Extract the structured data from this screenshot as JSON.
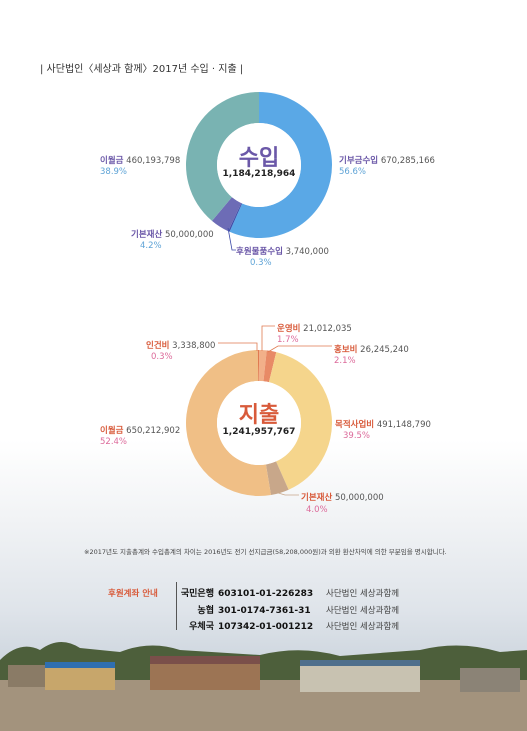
{
  "title": "| 사단법인〈세상과 함께〉2017년 수입 · 지출 |",
  "income": {
    "center_title": "수입",
    "total": "1,184,218,964",
    "items": [
      {
        "label": "기부금수입",
        "amount": "670,285,166",
        "percent": "56.6%",
        "color": "#5aa8e6",
        "value": 670285166
      },
      {
        "label": "후원물품수입",
        "amount": "3,740,000",
        "percent": "0.3%",
        "color": "#3c4aa8",
        "value": 3740000
      },
      {
        "label": "기본재산",
        "amount": "50,000,000",
        "percent": "4.2%",
        "color": "#6d6cb6",
        "value": 50000000
      },
      {
        "label": "이월금",
        "amount": "460,193,798",
        "percent": "38.9%",
        "color": "#79b3b2",
        "value": 460193798
      }
    ]
  },
  "expense": {
    "center_title": "지출",
    "total": "1,241,957,767",
    "items": [
      {
        "label": "운영비",
        "amount": "21,012,035",
        "percent": "1.7%",
        "color": "#f2b089",
        "value": 21012035
      },
      {
        "label": "홍보비",
        "amount": "26,245,240",
        "percent": "2.1%",
        "color": "#e88a66",
        "value": 26245240
      },
      {
        "label": "목적사업비",
        "amount": "491,148,790",
        "percent": "39.5%",
        "color": "#f5d58c",
        "value": 491148790
      },
      {
        "label": "기본재산",
        "amount": "50,000,000",
        "percent": "4.0%",
        "color": "#c8a78a",
        "value": 50000000
      },
      {
        "label": "이월금",
        "amount": "650,212,902",
        "percent": "52.4%",
        "color": "#f0bf86",
        "value": 650212902
      },
      {
        "label": "인건비",
        "amount": "3,338,800",
        "percent": "0.3%",
        "color": "#e07a50",
        "value": 3338800
      }
    ]
  },
  "note": "※2017년도 지출총계와 수입총계의 차이는 2016년도 전기 선지급금(58,208,000원)과 외환 환산차익에 의한 부분임을 명시합니다.",
  "accounts": {
    "label": "후원계좌 안내",
    "rows": [
      {
        "bank": "국민은행",
        "number": "603101-01-226283",
        "owner": "사단법인 세상과함께"
      },
      {
        "bank": "농협",
        "number": "301-0174-7361-31",
        "owner": "사단법인 세상과함께"
      },
      {
        "bank": "우체국",
        "number": "107342-01-001212",
        "owner": "사단법인 세상과함께"
      }
    ]
  }
}
